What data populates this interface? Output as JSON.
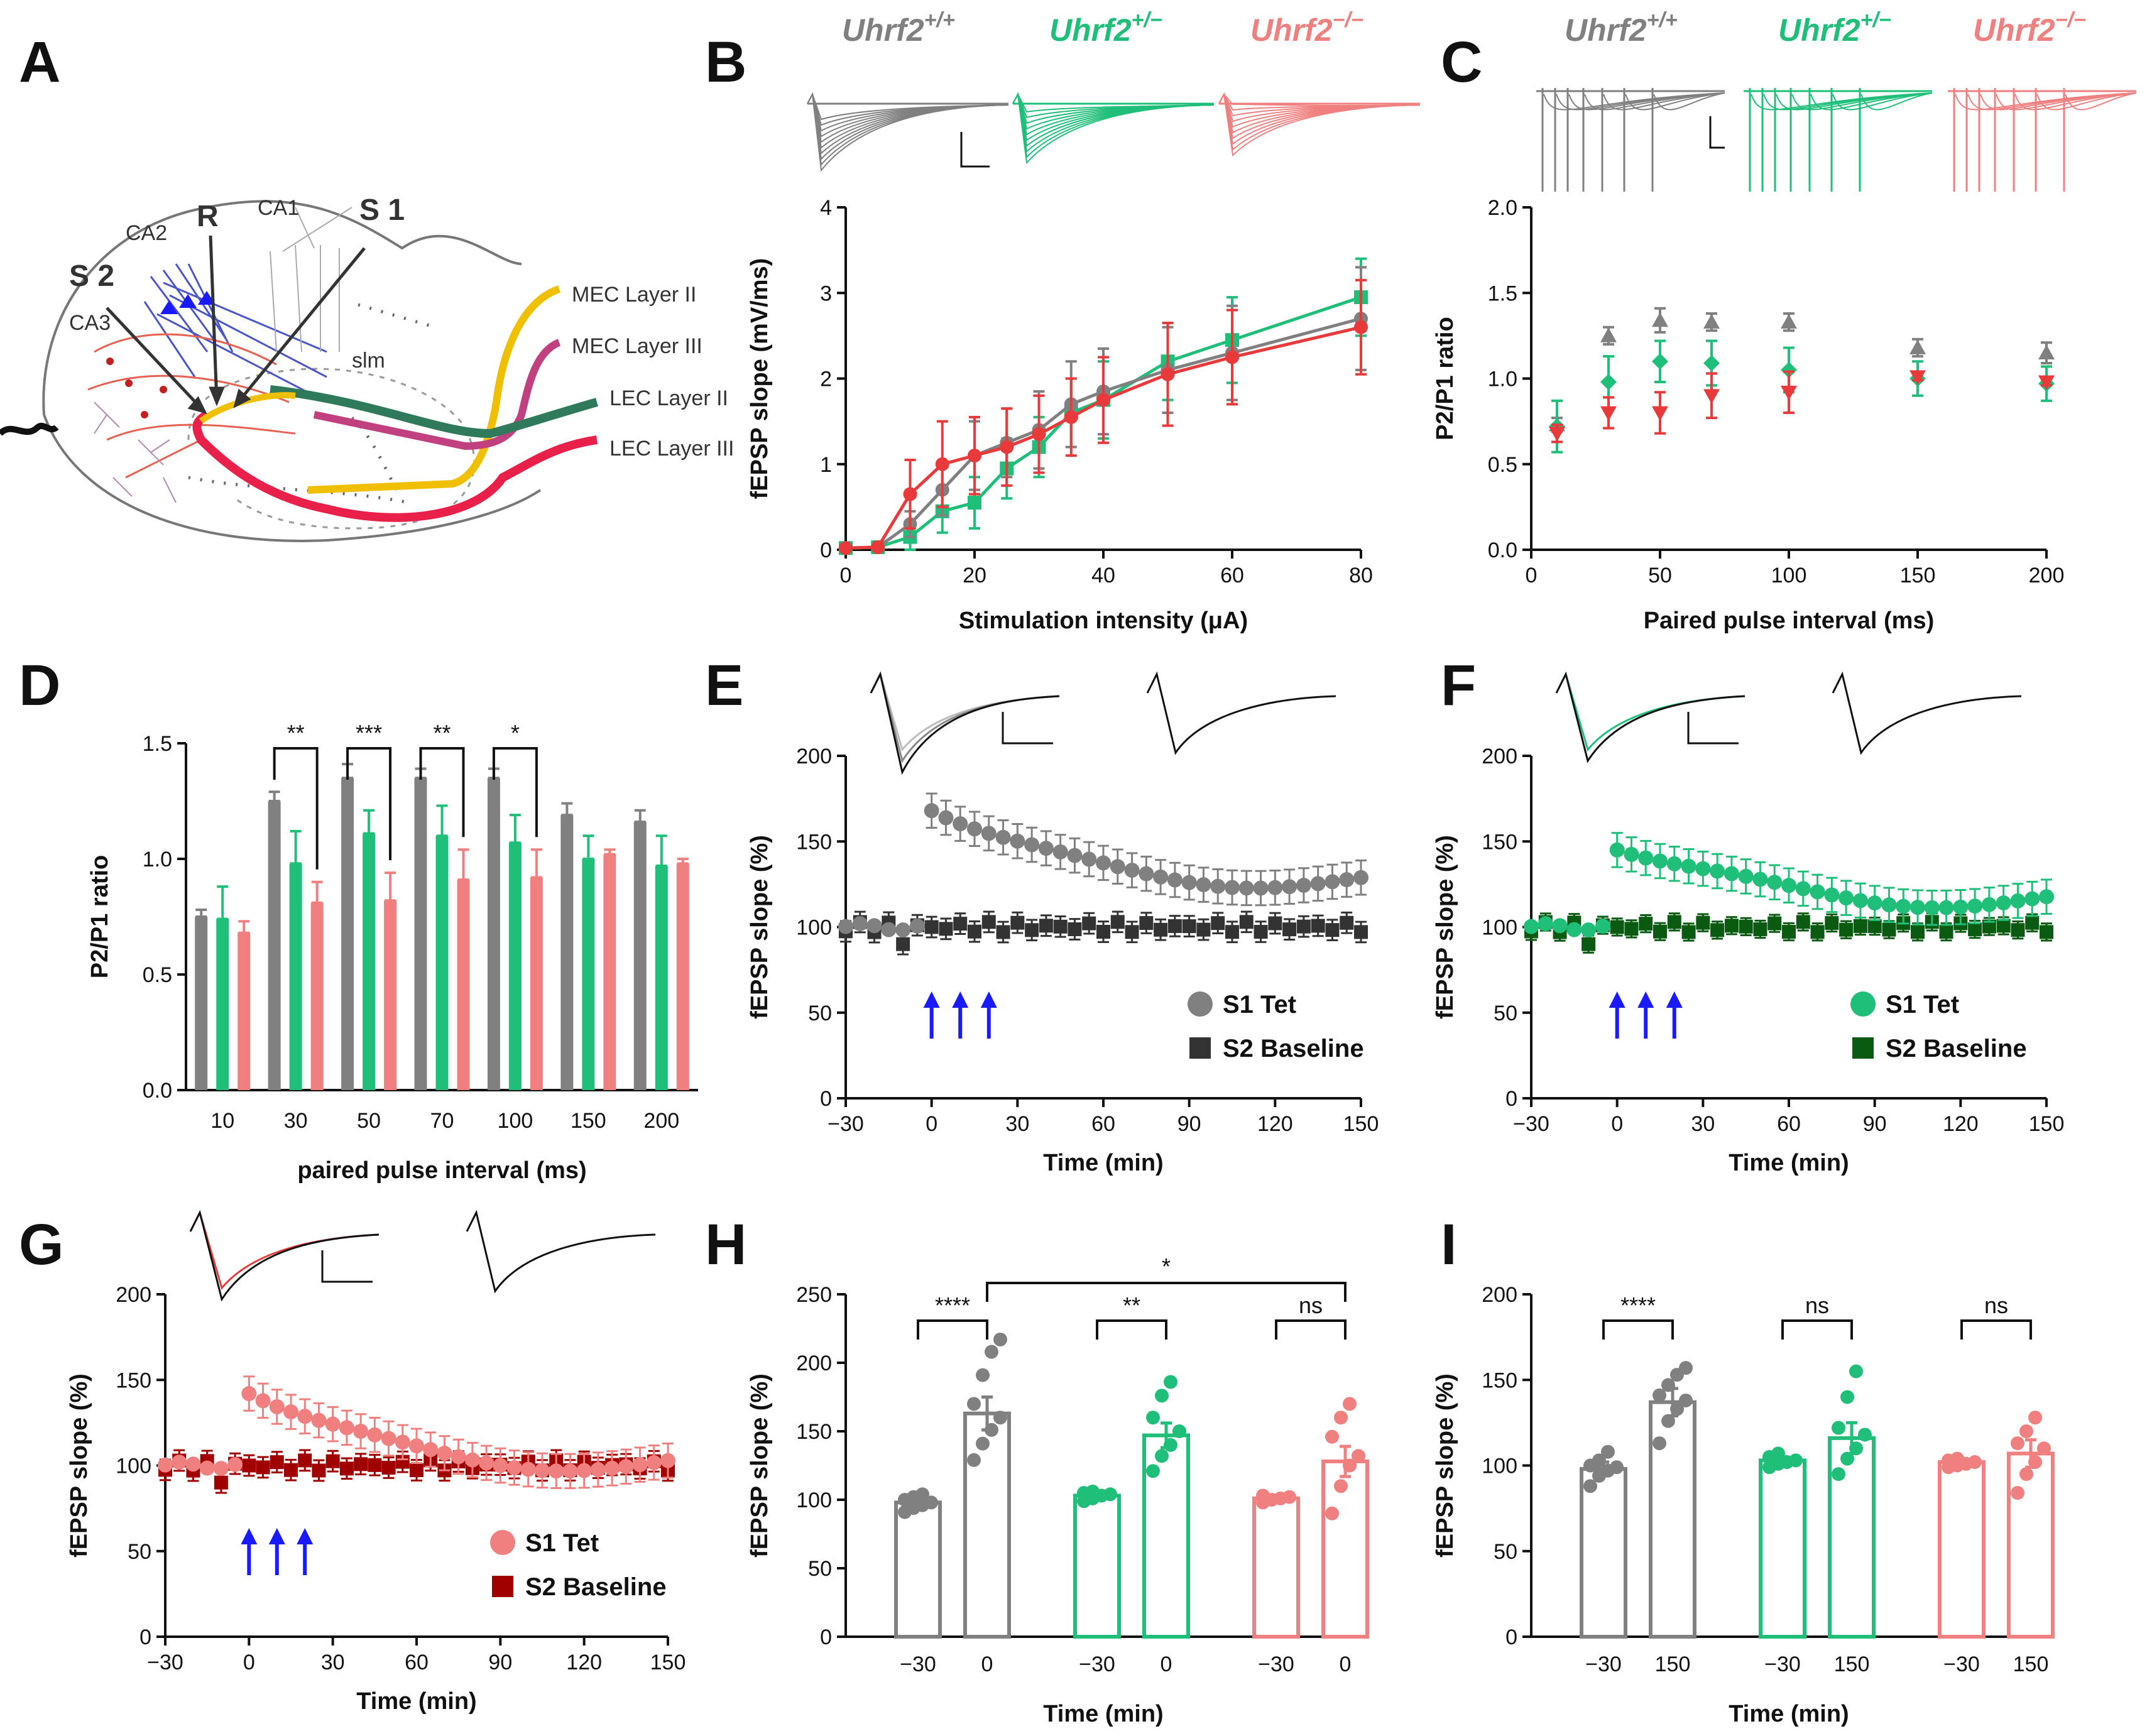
{
  "colors": {
    "wt": "#808080",
    "het": "#1fbf7a",
    "ko": "#f08080",
    "ko_line": "#e83a3a",
    "ko_dark": "#a00000",
    "het_dark": "#0a5a12",
    "base_dark": "#333333",
    "arrow": "#1a1aff"
  },
  "panels": {
    "A": "A",
    "B": "B",
    "C": "C",
    "D": "D",
    "E": "E",
    "F": "F",
    "G": "G",
    "H": "H",
    "I": "I"
  },
  "genotypes": {
    "wt": "Uhrf2",
    "wt_sup": "+/+",
    "het": "Uhrf2",
    "het_sup": "+/−",
    "ko": "Uhrf2",
    "ko_sup": "−/−"
  },
  "schematic": {
    "labels": {
      "s1": "S 1",
      "s2": "S 2",
      "r": "R",
      "ca1": "CA1",
      "ca2": "CA2",
      "ca3": "CA3",
      "slm": "slm",
      "mec2": "MEC Layer II",
      "mec3": "MEC Layer III",
      "lec2": "LEC Layer II",
      "lec3": "LEC Layer III"
    }
  },
  "chart_data": [
    {
      "panel": "B",
      "type": "line",
      "xlabel": "Stimulation intensity (μA)",
      "ylabel": "fEPSP slope (mV/ms)",
      "xlim": [
        0,
        80
      ],
      "ylim": [
        0,
        4
      ],
      "xticks": [
        0,
        20,
        40,
        60,
        80
      ],
      "yticks": [
        0,
        1,
        2,
        3,
        4
      ],
      "x": [
        0,
        5,
        10,
        15,
        20,
        25,
        30,
        35,
        40,
        50,
        60,
        80
      ],
      "series": [
        {
          "name": "wt",
          "values": [
            0.02,
            0.03,
            0.3,
            0.7,
            1.1,
            1.25,
            1.4,
            1.7,
            1.85,
            2.1,
            2.3,
            2.7
          ],
          "err": [
            0.02,
            0.02,
            0.15,
            0.3,
            0.4,
            0.4,
            0.45,
            0.5,
            0.5,
            0.5,
            0.55,
            0.6
          ]
        },
        {
          "name": "het",
          "values": [
            0.02,
            0.03,
            0.15,
            0.45,
            0.55,
            0.95,
            1.2,
            1.6,
            1.75,
            2.2,
            2.45,
            2.95
          ],
          "err": [
            0.02,
            0.02,
            0.15,
            0.25,
            0.3,
            0.35,
            0.35,
            0.4,
            0.45,
            0.45,
            0.5,
            0.45
          ]
        },
        {
          "name": "ko",
          "values": [
            0.02,
            0.03,
            0.65,
            1.0,
            1.1,
            1.2,
            1.35,
            1.55,
            1.75,
            2.05,
            2.25,
            2.6
          ],
          "err": [
            0.02,
            0.02,
            0.4,
            0.5,
            0.45,
            0.45,
            0.45,
            0.45,
            0.5,
            0.6,
            0.55,
            0.55
          ]
        }
      ]
    },
    {
      "panel": "C",
      "type": "scatter",
      "xlabel": "Paired pulse interval (ms)",
      "ylabel": "P2/P1 ratio",
      "xlim": [
        0,
        200
      ],
      "ylim": [
        0,
        2
      ],
      "xticks": [
        0,
        50,
        100,
        150,
        200
      ],
      "yticks": [
        "0.0",
        "0.5",
        "1.0",
        "1.5",
        "2.0"
      ],
      "x": [
        10,
        30,
        50,
        70,
        100,
        150,
        200
      ],
      "series": [
        {
          "name": "wt",
          "values": [
            0.73,
            1.25,
            1.34,
            1.33,
            1.33,
            1.18,
            1.15
          ],
          "err": [
            0.04,
            0.05,
            0.07,
            0.05,
            0.05,
            0.05,
            0.06
          ]
        },
        {
          "name": "het",
          "values": [
            0.72,
            0.98,
            1.1,
            1.09,
            1.05,
            1.0,
            0.97
          ],
          "err": [
            0.15,
            0.15,
            0.12,
            0.13,
            0.13,
            0.1,
            0.1
          ]
        },
        {
          "name": "ko",
          "values": [
            0.68,
            0.8,
            0.8,
            0.9,
            0.92,
            1.01,
            0.98
          ],
          "err": [
            0.05,
            0.09,
            0.12,
            0.13,
            0.12,
            0.02,
            0.02
          ]
        }
      ]
    },
    {
      "panel": "D",
      "type": "bar",
      "xlabel": "paired pulse interval (ms)",
      "ylabel": "P2/P1 ratio",
      "ylim": [
        0,
        1.5
      ],
      "yticks": [
        "0.0",
        "0.5",
        "1.0",
        "1.5"
      ],
      "categories": [
        "10",
        "30",
        "50",
        "70",
        "100",
        "150",
        "200"
      ],
      "series": [
        {
          "name": "wt",
          "values": [
            0.75,
            1.25,
            1.35,
            1.35,
            1.35,
            1.19,
            1.16
          ],
          "err": [
            0.03,
            0.04,
            0.06,
            0.04,
            0.04,
            0.05,
            0.05
          ]
        },
        {
          "name": "het",
          "values": [
            0.74,
            0.98,
            1.11,
            1.1,
            1.07,
            1.0,
            0.97
          ],
          "err": [
            0.14,
            0.14,
            0.1,
            0.13,
            0.12,
            0.1,
            0.13
          ]
        },
        {
          "name": "ko",
          "values": [
            0.68,
            0.81,
            0.82,
            0.91,
            0.92,
            1.02,
            0.98
          ],
          "err": [
            0.05,
            0.09,
            0.12,
            0.13,
            0.12,
            0.02,
            0.02
          ]
        }
      ],
      "significance": [
        {
          "cat": "30",
          "label": "**"
        },
        {
          "cat": "50",
          "label": "***"
        },
        {
          "cat": "70",
          "label": "**"
        },
        {
          "cat": "100",
          "label": "*"
        }
      ]
    },
    {
      "panel": "E",
      "type": "scatter",
      "xlabel": "Time (min)",
      "ylabel": "fEPSP slope (%)",
      "xlim": [
        -30,
        150
      ],
      "ylim": [
        0,
        200
      ],
      "xticks": [
        "−30",
        "0",
        "30",
        "60",
        "90",
        "120",
        "150"
      ],
      "yticks": [
        0,
        50,
        100,
        150,
        200
      ],
      "legend": [
        "S1 Tet",
        "S2 Baseline"
      ],
      "tetanus_min": [
        0,
        10,
        20
      ],
      "tet_peak": 168,
      "tet_end": 127,
      "tet_err": 10,
      "base_err": 6
    },
    {
      "panel": "F",
      "type": "scatter",
      "xlabel": "Time (min)",
      "ylabel": "fEPSP slope (%)",
      "xlim": [
        -30,
        150
      ],
      "ylim": [
        0,
        200
      ],
      "xticks": [
        "−30",
        "0",
        "30",
        "60",
        "90",
        "120",
        "150"
      ],
      "yticks": [
        0,
        50,
        100,
        150,
        200
      ],
      "legend": [
        "S1 Tet",
        "S2 Baseline"
      ],
      "tetanus_min": [
        0,
        10,
        20
      ],
      "tet_peak": 145,
      "tet_end": 116,
      "tet_err": 10,
      "base_err": 5
    },
    {
      "panel": "G",
      "type": "scatter",
      "xlabel": "Time (min)",
      "ylabel": "fEPSP slope (%)",
      "xlim": [
        -30,
        150
      ],
      "ylim": [
        0,
        200
      ],
      "xticks": [
        "−30",
        "0",
        "30",
        "60",
        "90",
        "120",
        "150"
      ],
      "yticks": [
        0,
        50,
        100,
        150,
        200
      ],
      "legend": [
        "S1 Tet",
        "S2 Baseline"
      ],
      "tetanus_min": [
        0,
        10,
        20
      ],
      "tet_peak": 142,
      "tet_end": 101,
      "tet_err": 10,
      "base_err": 6
    },
    {
      "panel": "H",
      "type": "bar",
      "xlabel": "Time (min)",
      "ylabel": "fEPSP slope (%)",
      "ylim": [
        0,
        250
      ],
      "yticks": [
        0,
        50,
        100,
        150,
        200,
        250
      ],
      "groups": [
        {
          "name": "wt",
          "labels": [
            "−30",
            "0"
          ],
          "means": [
            98,
            163
          ],
          "err": [
            3,
            12
          ],
          "points": [
            [
              91,
              94,
              96,
              98,
              100,
              102,
              104
            ],
            [
              129,
              141,
              151,
              160,
              170,
              191,
              208,
              217
            ]
          ]
        },
        {
          "name": "het",
          "labels": [
            "−30",
            "0"
          ],
          "means": [
            103,
            147
          ],
          "err": [
            2,
            9
          ],
          "points": [
            [
              99,
              101,
              103,
              104,
              105,
              106
            ],
            [
              121,
              132,
              140,
              150,
              160,
              176,
              186
            ]
          ]
        },
        {
          "name": "ko",
          "labels": [
            "−30",
            "0"
          ],
          "means": [
            101,
            128
          ],
          "err": [
            1,
            11
          ],
          "points": [
            [
              98,
              100,
              101,
              102,
              103
            ],
            [
              90,
              110,
              125,
              132,
              146,
              160,
              170
            ]
          ]
        }
      ],
      "significance": [
        {
          "label": "****"
        },
        {
          "label": "**"
        },
        {
          "label": "ns"
        },
        {
          "label": "*"
        }
      ]
    },
    {
      "panel": "I",
      "type": "bar",
      "xlabel": "Time (min)",
      "ylabel": "fEPSP slope (%)",
      "ylim": [
        0,
        200
      ],
      "yticks": [
        0,
        50,
        100,
        150,
        200
      ],
      "groups": [
        {
          "name": "wt",
          "labels": [
            "−30",
            "150"
          ],
          "means": [
            98,
            137
          ],
          "err": [
            4,
            8
          ],
          "points": [
            [
              88,
              94,
              97,
              99,
              100,
              103,
              108
            ],
            [
              113,
              126,
              133,
              138,
              141,
              147,
              153,
              157
            ]
          ]
        },
        {
          "name": "het",
          "labels": [
            "−30",
            "150"
          ],
          "means": [
            103,
            116
          ],
          "err": [
            2,
            9
          ],
          "points": [
            [
              99,
              101,
              102,
              103,
              105,
              107
            ],
            [
              95,
              104,
              110,
              118,
              122,
              140,
              155
            ]
          ]
        },
        {
          "name": "ko",
          "labels": [
            "−30",
            "150"
          ],
          "means": [
            102,
            107
          ],
          "err": [
            2,
            8
          ],
          "points": [
            [
              99,
              100,
              101,
              102,
              103,
              104
            ],
            [
              84,
              95,
              102,
              110,
              113,
              120,
              128
            ]
          ]
        }
      ],
      "significance": [
        {
          "label": "****"
        },
        {
          "label": "ns"
        },
        {
          "label": "ns"
        }
      ]
    }
  ]
}
